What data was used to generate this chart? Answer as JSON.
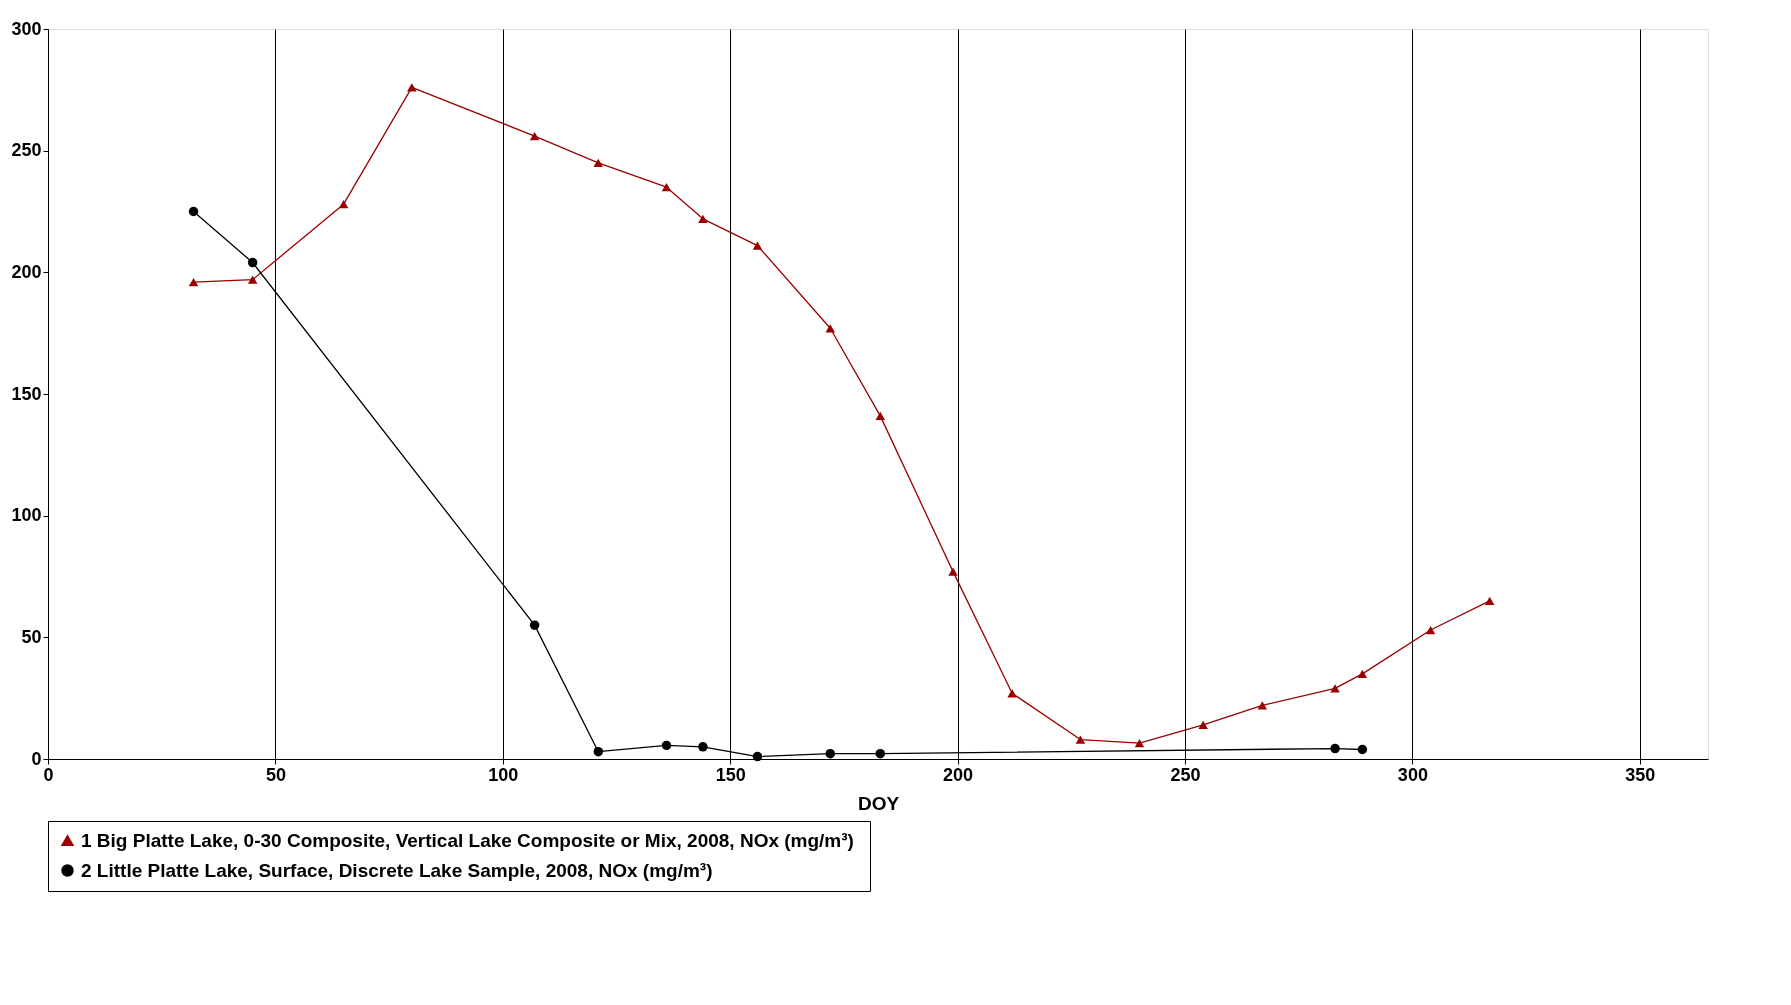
{
  "chart_data": {
    "type": "line",
    "xlabel": "DOY",
    "xlim": [
      0,
      365
    ],
    "xticks": [
      0,
      50,
      100,
      150,
      200,
      250,
      300,
      350
    ],
    "ylim": [
      0,
      300
    ],
    "yticks": [
      0,
      50,
      100,
      150,
      200,
      250,
      300
    ],
    "grid": "x",
    "legend": "bottom left",
    "series": [
      {
        "name": "1  Big Platte Lake, 0-30 Composite, Vertical Lake Composite or Mix, 2008, NOx (mg/m³)",
        "color": "#990000",
        "marker": "triangle",
        "x": [
          32,
          45,
          65,
          80,
          107,
          121,
          136,
          144,
          156,
          172,
          183,
          199,
          212,
          227,
          240,
          254,
          267,
          283,
          289,
          304,
          317
        ],
        "values": [
          196,
          197,
          228,
          276,
          256,
          245,
          235,
          222,
          211,
          177,
          141,
          77,
          27,
          8,
          6.5,
          14,
          22,
          29,
          35,
          53,
          65
        ]
      },
      {
        "name": "2  Little Platte Lake, Surface, Discrete Lake Sample, 2008, NOx (mg/m³)",
        "color": "#000000",
        "marker": "circle",
        "x": [
          32,
          45,
          107,
          121,
          136,
          144,
          156,
          172,
          183,
          283,
          289
        ],
        "values": [
          225,
          204,
          55,
          3,
          5.6,
          5,
          1,
          2.2,
          2.2,
          4.3,
          3.9
        ]
      }
    ]
  }
}
